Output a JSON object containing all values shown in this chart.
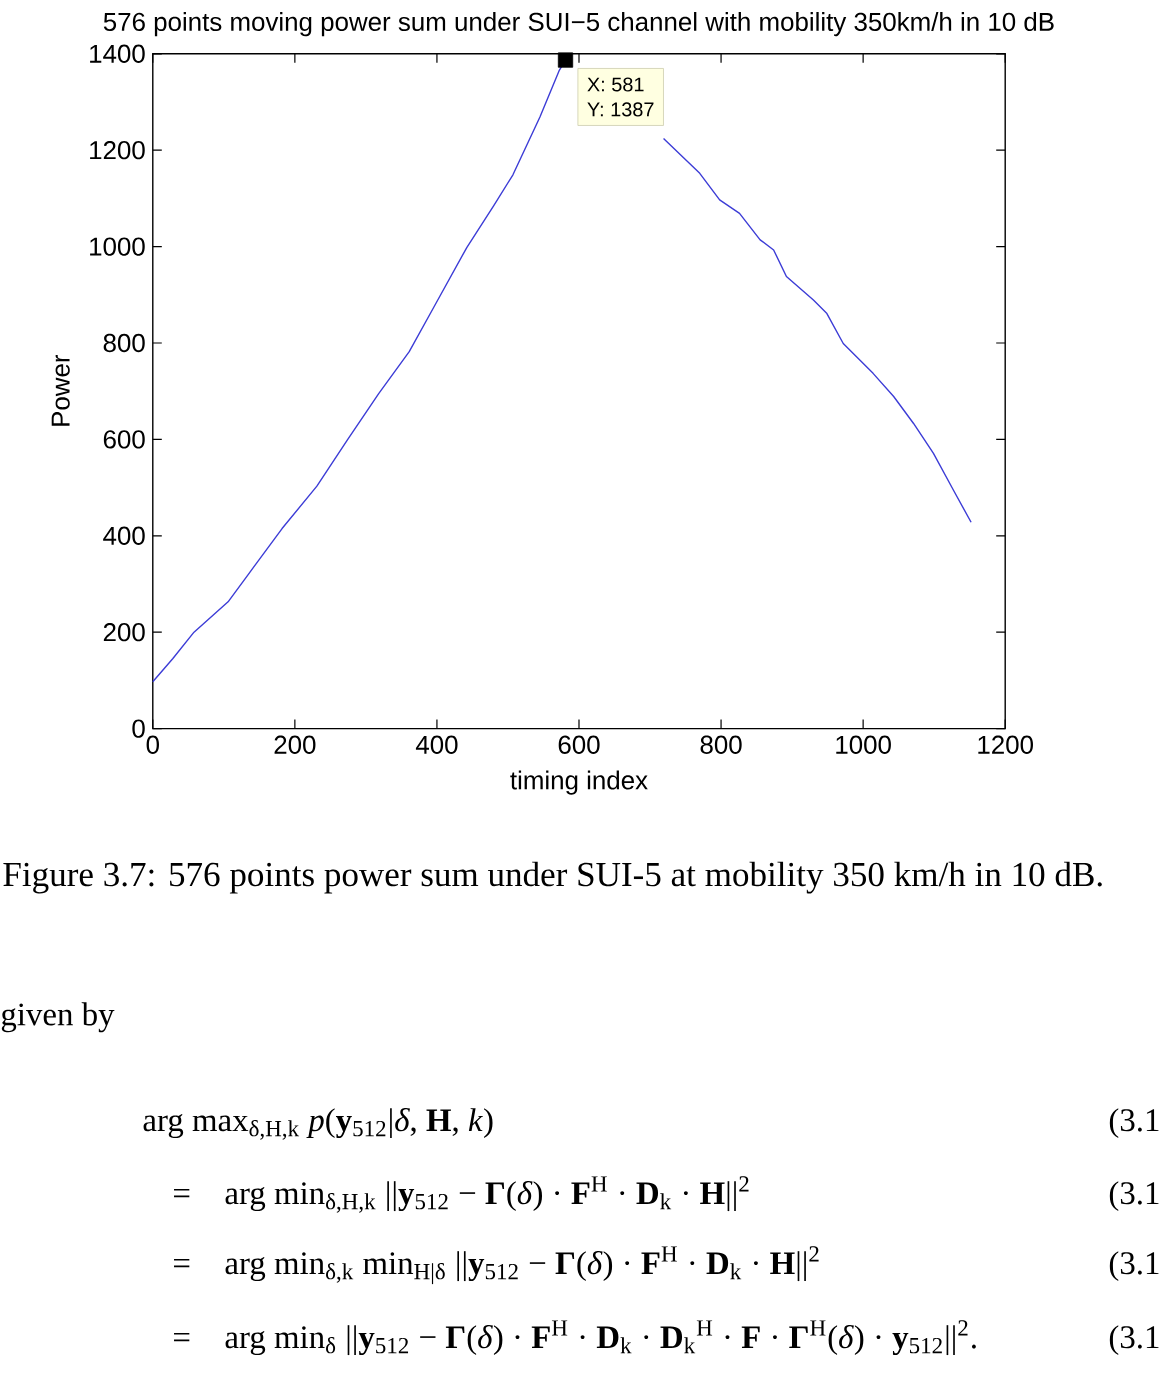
{
  "chart_data": {
    "type": "line",
    "title": "576 points moving power sum under SUI−5 channel with mobility 350km/h in 10 dB",
    "xlabel": "timing index",
    "ylabel": "Power",
    "xlim": [
      0,
      1200
    ],
    "ylim": [
      0,
      1400
    ],
    "xticks": [
      0,
      200,
      400,
      600,
      800,
      1000,
      1200
    ],
    "yticks": [
      0,
      200,
      400,
      600,
      800,
      1000,
      1200,
      1400
    ],
    "series": [
      {
        "color": "#3c3cd6",
        "x": [
          0,
          28,
          58,
          106,
          134,
          182,
          231,
          274,
          318,
          361,
          394,
          442,
          480,
          507,
          545,
          572,
          581,
          650,
          719,
          770,
          798,
          826,
          855,
          874,
          892,
          930,
          949,
          972,
          1014,
          1043,
          1071,
          1099,
          1127,
          1152
        ],
        "values": [
          97,
          145,
          200,
          263,
          319,
          415,
          503,
          599,
          695,
          782,
          870,
          998,
          1085,
          1149,
          1269,
          1365,
          1387,
          null,
          1224,
          1152,
          1097,
          1069,
          1014,
          993,
          938,
          889,
          861,
          799,
          737,
          689,
          633,
          571,
          495,
          428
        ]
      },
      {
        "type": "scatter",
        "marker": "square",
        "color": "#000000",
        "x": [
          581
        ],
        "values": [
          1387
        ]
      }
    ],
    "annotations": [
      {
        "text": "X: 581",
        "x": 581,
        "y": 1387
      },
      {
        "text": "Y: 1387",
        "x": 581,
        "y": 1387
      },
      "Figure 3.7: 576 points power sum under SUI-5 at mobility 350 km/h in 10 dB.",
      "given by",
      "arg max$_{δ,H,k}$ *p*(**y**$_{512}$|*δ*, **H**, *k*)",
      "(3.1",
      "=",
      "arg min$_{δ,H,k}$ ||**y**$_{512}$ − **Γ**(*δ*) · **F**$^{H}$ · **D**$_{k}$ · **H**||$^{2}$",
      "(3.1",
      "=",
      "arg min$_{δ,k}$ min$_{H|δ}$ ||**y**$_{512}$ − **Γ**(*δ*) · **F**$^{H}$ · **D**$_{k}$ · **H**||$^{2}$",
      "(3.1",
      "=",
      "arg min$_{δ}$ ||**y**$_{512}$ − **Γ**(*δ*) · **F**$^{H}$ · **D**$_{k}$ · **D**$_{k}$$^{H}$ · **F** · **Γ**$^{H}$(*δ*) · **y**$_{512}$||$^{2}$.",
      "(3.1"
    ]
  }
}
